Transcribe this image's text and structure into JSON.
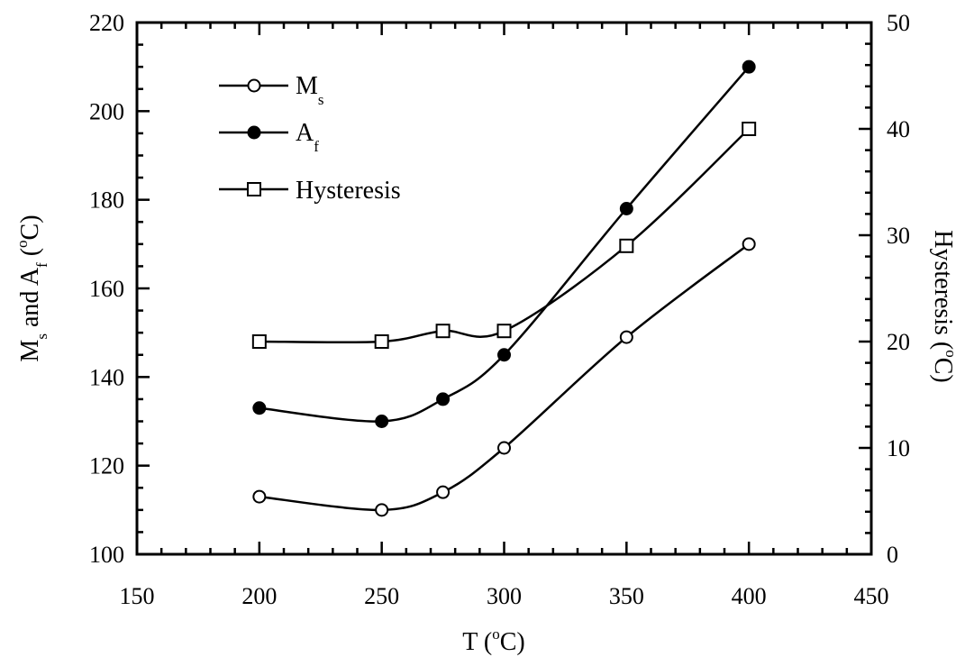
{
  "chart_data": {
    "type": "line",
    "x_axis": {
      "title_main": "T (",
      "title_unit": "C)",
      "title_degree": "o",
      "min": 150,
      "max": 450,
      "ticks": [
        "150",
        "200",
        "250",
        "300",
        "350",
        "400",
        "450"
      ]
    },
    "y_axis_left": {
      "title_m": "M",
      "title_m_sub": "s",
      "title_mid": " and A",
      "title_a_sub": "f",
      "title_open": " (",
      "title_degree": "o",
      "title_unit": "C)",
      "min": 100,
      "max": 220,
      "ticks": [
        "100",
        "120",
        "140",
        "160",
        "180",
        "200",
        "220"
      ]
    },
    "y_axis_right": {
      "title_main": "Hysteresis (",
      "title_degree": "o",
      "title_unit": "C)",
      "min": 0,
      "max": 50,
      "ticks": [
        "0",
        "10",
        "20",
        "30",
        "40",
        "50"
      ]
    },
    "series": [
      {
        "name_main": "M",
        "name_sub": "s",
        "axis": "left",
        "marker": "open-circle",
        "x": [
          200,
          250,
          275,
          300,
          350,
          400
        ],
        "y": [
          113,
          110,
          114,
          124,
          149,
          170
        ]
      },
      {
        "name_main": "A",
        "name_sub": "f",
        "axis": "left",
        "marker": "filled-circle",
        "x": [
          200,
          250,
          275,
          300,
          350,
          400
        ],
        "y": [
          133,
          130,
          135,
          145,
          178,
          210
        ]
      },
      {
        "name_main": "Hysteresis",
        "name_sub": "",
        "axis": "right",
        "marker": "open-square",
        "x": [
          200,
          250,
          275,
          300,
          350,
          400
        ],
        "y": [
          20,
          20,
          21,
          21,
          29,
          40
        ]
      }
    ],
    "legend_position": "top-left",
    "grid": false
  }
}
